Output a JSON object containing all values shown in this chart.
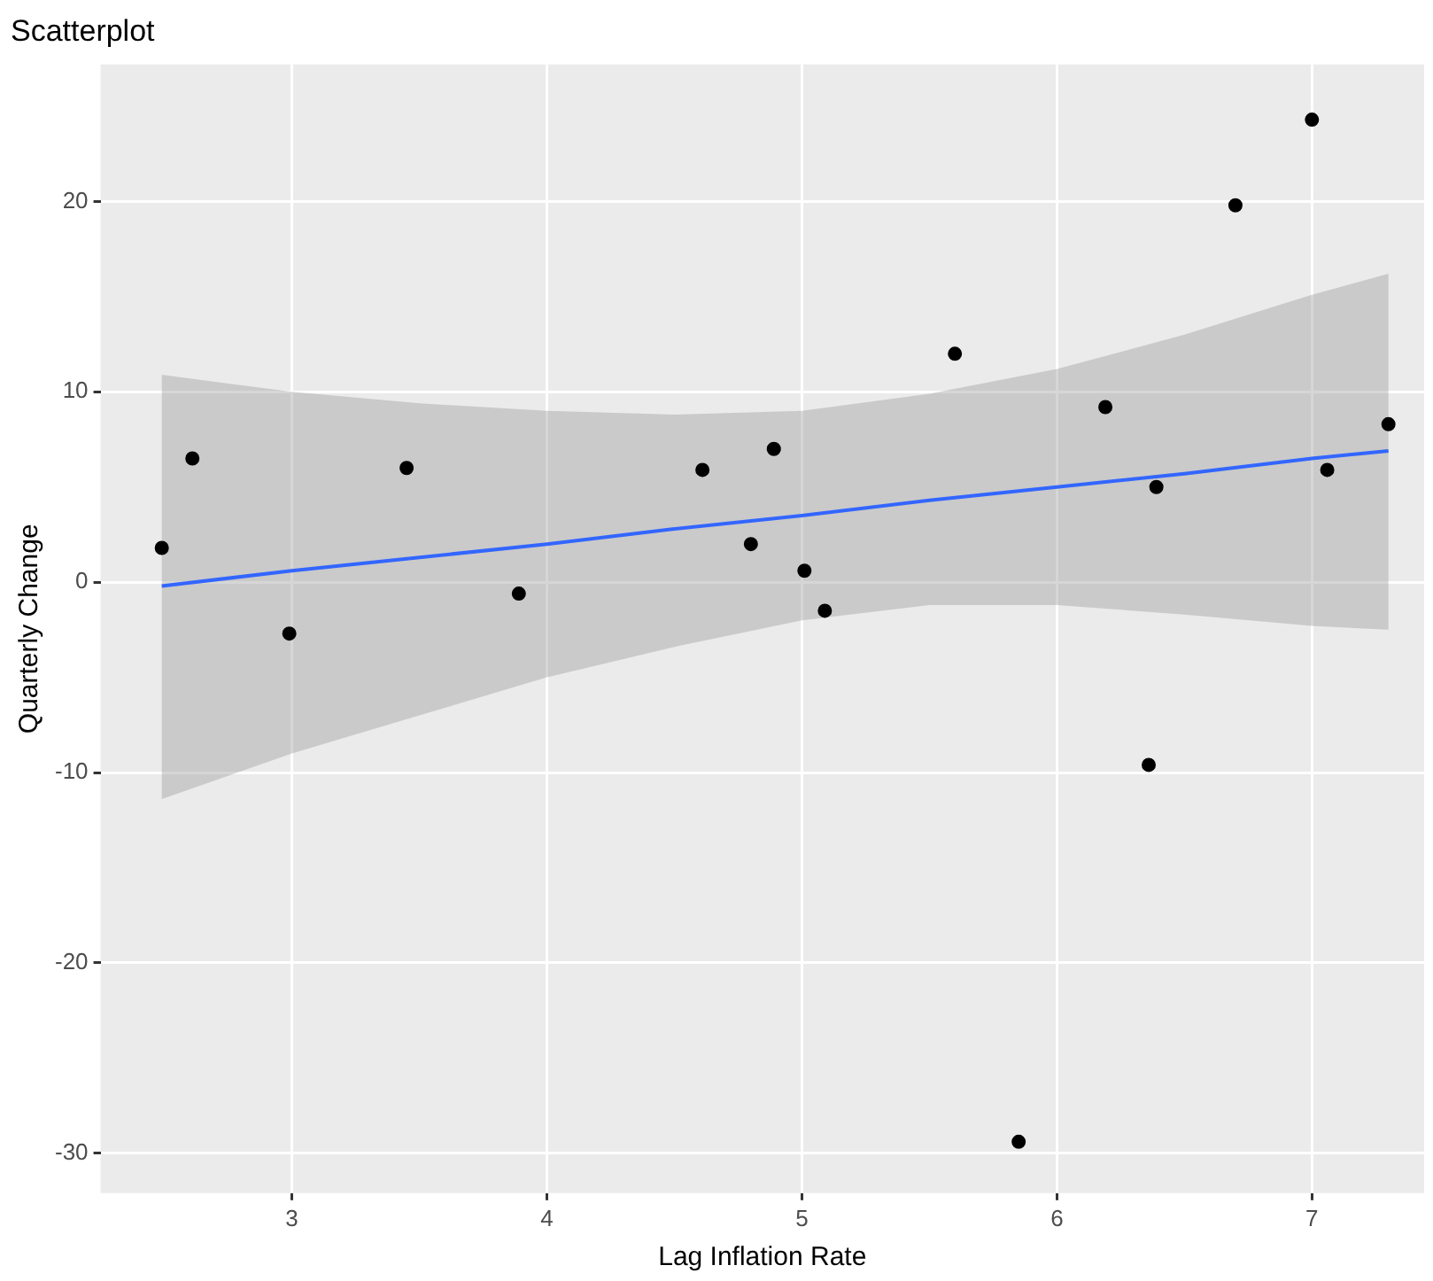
{
  "chart_data": {
    "type": "scatter",
    "title": "Scatterplot",
    "xlabel": "Lag Inflation Rate",
    "ylabel": "Quarterly Change",
    "xlim": [
      2.25,
      7.44
    ],
    "xticks": [
      3,
      4,
      5,
      6,
      7
    ],
    "ylim": [
      -32.1,
      27.2
    ],
    "yticks": [
      -30,
      -20,
      -10,
      0,
      10,
      20
    ],
    "grid": true,
    "legend": false,
    "series": [
      {
        "marker": "circle",
        "color": "#000000",
        "x": [
          2.49,
          2.61,
          2.99,
          3.45,
          3.89,
          4.61,
          4.8,
          4.89,
          5.01,
          5.09,
          5.6,
          5.85,
          6.19,
          6.36,
          6.39,
          6.7,
          7.0,
          7.06,
          7.3
        ],
        "values": [
          1.8,
          6.5,
          -2.7,
          6.0,
          -0.6,
          5.9,
          2.0,
          7.0,
          0.6,
          -1.5,
          12.0,
          -29.4,
          9.2,
          -9.6,
          5.0,
          19.8,
          24.3,
          5.9,
          8.3
        ]
      },
      {
        "type": "line",
        "marker": "none",
        "color": "#3366ff",
        "x": [
          2.49,
          3,
          3.5,
          4,
          4.5,
          5,
          5.5,
          6,
          6.5,
          7,
          7.3
        ],
        "values": [
          -0.2,
          0.6,
          1.3,
          2.0,
          2.8,
          3.5,
          4.3,
          5.0,
          5.7,
          6.5,
          6.9
        ],
        "lower": [
          -11.4,
          -9.0,
          -7.0,
          -5.0,
          -3.4,
          -2.0,
          -1.2,
          -1.2,
          -1.7,
          -2.3,
          -2.5
        ],
        "upper": [
          10.9,
          10.0,
          9.4,
          9.0,
          8.8,
          9.0,
          9.9,
          11.2,
          13.0,
          15.1,
          16.2
        ]
      }
    ]
  }
}
